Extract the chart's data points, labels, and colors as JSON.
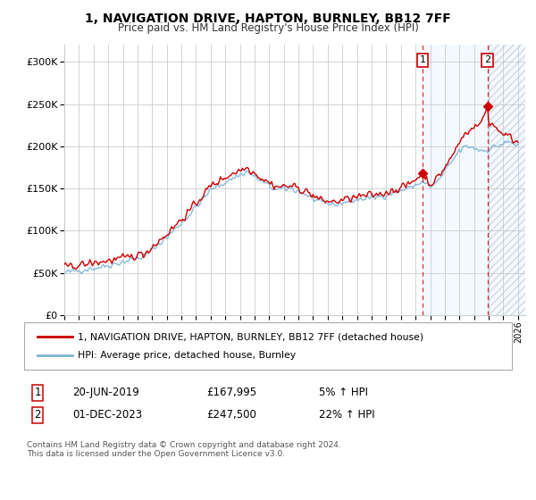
{
  "title": "1, NAVIGATION DRIVE, HAPTON, BURNLEY, BB12 7FF",
  "subtitle": "Price paid vs. HM Land Registry's House Price Index (HPI)",
  "xlim_start": 1995.0,
  "xlim_end": 2026.5,
  "ylim": [
    0,
    320000
  ],
  "yticks": [
    0,
    50000,
    100000,
    150000,
    200000,
    250000,
    300000
  ],
  "ytick_labels": [
    "£0",
    "£50K",
    "£100K",
    "£150K",
    "£200K",
    "£250K",
    "£300K"
  ],
  "xtick_years": [
    1995,
    1996,
    1997,
    1998,
    1999,
    2000,
    2001,
    2002,
    2003,
    2004,
    2005,
    2006,
    2007,
    2008,
    2009,
    2010,
    2011,
    2012,
    2013,
    2014,
    2015,
    2016,
    2017,
    2018,
    2019,
    2020,
    2021,
    2022,
    2023,
    2024,
    2025,
    2026
  ],
  "hpi_color": "#7cb4d8",
  "price_color": "#cc0000",
  "marker1_date": 2019.47,
  "marker1_price": 167995,
  "marker2_date": 2023.92,
  "marker2_price": 247500,
  "legend_line1": "1, NAVIGATION DRIVE, HAPTON, BURNLEY, BB12 7FF (detached house)",
  "legend_line2": "HPI: Average price, detached house, Burnley",
  "note1_num": "1",
  "note1_date": "20-JUN-2019",
  "note1_price": "£167,995",
  "note1_hpi": "5% ↑ HPI",
  "note2_num": "2",
  "note2_date": "01-DEC-2023",
  "note2_price": "£247,500",
  "note2_hpi": "22% ↑ HPI",
  "copyright": "Contains HM Land Registry data © Crown copyright and database right 2024.\nThis data is licensed under the Open Government Licence v3.0.",
  "bg_color": "#ffffff",
  "grid_color": "#cccccc",
  "shaded_color": "#ddeeff",
  "hatch_color": "#ddeeff"
}
